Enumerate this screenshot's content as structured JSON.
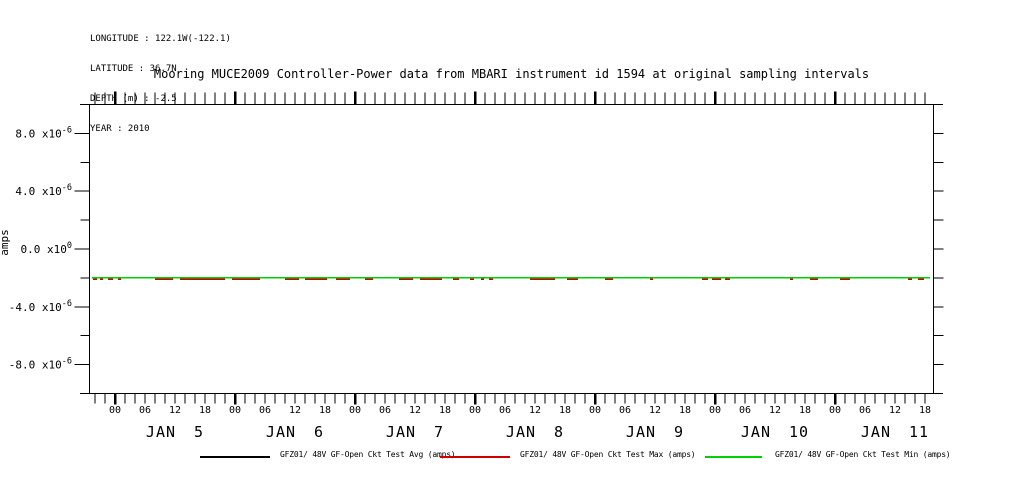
{
  "info": {
    "longitude": "LONGITUDE : 122.1W(-122.1)",
    "latitude": "LATITUDE : 36.7N",
    "depth": "DEPTH (m) : -2.5",
    "year": "YEAR : 2010"
  },
  "chart_data": {
    "type": "line",
    "title": "Mooring MUCE2009 Controller-Power data from MBARI instrument id 1594 at original sampling intervals",
    "ylabel": "amps",
    "background_color": "#ffffff",
    "axis_color": "#000000",
    "grid": false,
    "legend_position": "bottom",
    "y_axis": {
      "min": -1e-05,
      "max": 1e-05,
      "major_ticks": [
        {
          "text": "8.0 x10",
          "sup": "-6",
          "value": 8e-06
        },
        {
          "text": "4.0 x10",
          "sup": "-6",
          "value": 4e-06
        },
        {
          "text": "0.0 x10",
          "sup": "0",
          "value": 0
        },
        {
          "text": "-4.0 x10",
          "sup": "-6",
          "value": -4e-06
        },
        {
          "text": "-8.0 x10",
          "sup": "-6",
          "value": -8e-06
        }
      ],
      "minor_tick_values": [
        6e-06,
        2e-06,
        -2e-06,
        -6e-06
      ],
      "right_tick_values": [
        8e-06,
        6e-06,
        4e-06,
        2e-06,
        0,
        -2e-06,
        -4e-06,
        -6e-06,
        -8e-06
      ]
    },
    "x_axis": {
      "days": [
        "JAN 5",
        "JAN 6",
        "JAN 7",
        "JAN 8",
        "JAN 9",
        "JAN 10",
        "JAN 11"
      ],
      "hour_labels": [
        "00",
        "06",
        "12",
        "18"
      ],
      "hours_per_day": 24,
      "minor_tick_hours": 2,
      "range_hours": [
        -5.2,
        163.6
      ]
    },
    "series": [
      {
        "name": "GFZ01/ 48V GF-Open Ckt Test Avg (amps)",
        "color": "#000000",
        "style": "flat-line",
        "value_amps": -2e-06
      },
      {
        "name": "GFZ01/ 48V GF-Open Ckt Test Max (amps)",
        "color": "#cc0000",
        "style": "segments",
        "value_amps": -2e-06,
        "segments_hours": [
          [
            -4.4,
            -3.6
          ],
          [
            -3.0,
            -2.4
          ],
          [
            -1.4,
            -0.4
          ],
          [
            0.6,
            1.2
          ],
          [
            8.0,
            11.6
          ],
          [
            13.0,
            22.0
          ],
          [
            23.4,
            29.0
          ],
          [
            34.0,
            36.8
          ],
          [
            38.0,
            42.4
          ],
          [
            44.2,
            47.0
          ],
          [
            50.0,
            51.6
          ],
          [
            56.8,
            59.6
          ],
          [
            61.0,
            65.4
          ],
          [
            67.6,
            68.8
          ],
          [
            71.0,
            71.8
          ],
          [
            73.2,
            73.8
          ],
          [
            74.8,
            75.6
          ],
          [
            83.0,
            88.0
          ],
          [
            90.4,
            92.6
          ],
          [
            98.0,
            99.6
          ],
          [
            107.0,
            107.6
          ],
          [
            117.4,
            118.6
          ],
          [
            119.4,
            121.2
          ],
          [
            122.0,
            123.0
          ],
          [
            135.0,
            135.6
          ],
          [
            139.0,
            140.6
          ],
          [
            145.0,
            147.0
          ],
          [
            158.6,
            159.4
          ],
          [
            160.6,
            161.8
          ]
        ]
      },
      {
        "name": "GFZ01/ 48V GF-Open Ckt Test Min (amps)",
        "color": "#00d000",
        "style": "flat-line",
        "value_amps": -2e-06
      }
    ]
  }
}
